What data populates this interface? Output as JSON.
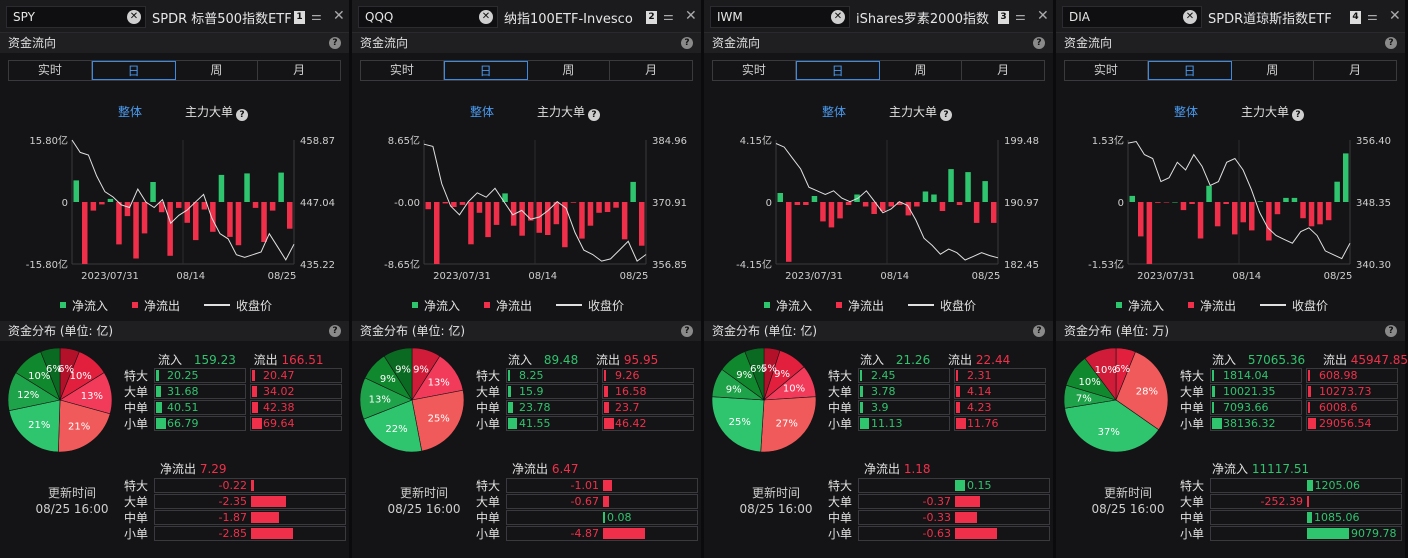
{
  "colors": {
    "inflow": "#2fc46e",
    "outflow": "#f0304a",
    "accent": "#4a9af0",
    "price_line": "#e0e0e0"
  },
  "labels": {
    "section1": "资金流向",
    "section2_prefix": "资金分布 (单位: ",
    "section2_suffix": ")",
    "tabs": [
      "实时",
      "日",
      "周",
      "月"
    ],
    "selected_tab": "日",
    "subtab_all": "整体",
    "subtab_major": "主力大单",
    "legend_in": "净流入",
    "legend_out": "净流出",
    "legend_price": "收盘价",
    "flow_in": "流入",
    "flow_out": "流出",
    "rows": [
      "特大",
      "大单",
      "中单",
      "小单"
    ],
    "update_label": "更新时间",
    "update_time": "08/25 16:00",
    "x_ticks": [
      "2023/07/31",
      "08/14",
      "08/25"
    ],
    "close_icon": "close-icon",
    "settings_icon": "sliders-icon",
    "help_icon": "question-icon"
  },
  "panels": [
    {
      "symbol": "SPY",
      "name": "SPDR 标普500指数ETF",
      "index": "1",
      "unit": "亿",
      "chart_data": {
        "type": "bar",
        "left_ticks": [
          "15.80亿",
          "0",
          "-15.80亿"
        ],
        "right_ticks": [
          "458.87",
          "447.04",
          "435.22"
        ],
        "ylim": [
          -15.8,
          15.8
        ],
        "price_ylim": [
          435.22,
          458.87
        ],
        "net_flow": [
          5.5,
          -15.8,
          -2.2,
          -0.6,
          0.8,
          -10.8,
          -3.6,
          -14.4,
          -8,
          5.1,
          -2.6,
          -13.7,
          -1.5,
          -5.3,
          -9.7,
          -1.9,
          -7.6,
          6.9,
          -8.9,
          -11,
          7.3,
          -1.5,
          -10.2,
          -2.2,
          7.5,
          -6.8
        ],
        "close": [
          458.87,
          456.5,
          456,
          452,
          449,
          448,
          446.5,
          446,
          449.5,
          447,
          446,
          447.5,
          443,
          444.5,
          445.5,
          447,
          448.5,
          444,
          441,
          440,
          437,
          436.5,
          437,
          437.5,
          441,
          438.5,
          436,
          439
        ]
      },
      "pie": [
        {
          "label": "6%",
          "value": 6,
          "color": "#b3102a"
        },
        {
          "label": "10%",
          "value": 10,
          "color": "#e2203e"
        },
        {
          "label": "13%",
          "value": 13,
          "color": "#f23b5a"
        },
        {
          "label": "21%",
          "value": 21,
          "color": "#f05a5a"
        },
        {
          "label": "21%",
          "value": 21,
          "color": "#2fc46e"
        },
        {
          "label": "12%",
          "value": 12,
          "color": "#1fa34a"
        },
        {
          "label": "10%",
          "value": 10,
          "color": "#10882e"
        },
        {
          "label": "6%",
          "value": 6,
          "color": "#0a6a22"
        }
      ],
      "flow_in": "159.23",
      "flow_out": "166.51",
      "in_vals": [
        "20.25",
        "31.68",
        "40.51",
        "66.79"
      ],
      "out_vals": [
        "20.47",
        "34.02",
        "42.38",
        "69.64"
      ],
      "net_label": "净流出",
      "net_value": "7.29",
      "net_sign": -1,
      "net_vals": [
        "-0.22",
        "-2.35",
        "-1.87",
        "-2.85"
      ],
      "net_nums": [
        -0.22,
        -2.35,
        -1.87,
        -2.85
      ]
    },
    {
      "symbol": "QQQ",
      "name": "纳指100ETF-Invesco",
      "index": "2",
      "unit": "亿",
      "chart_data": {
        "type": "bar",
        "left_ticks": [
          "8.65亿",
          "-0.00",
          "-8.65亿"
        ],
        "right_ticks": [
          "384.96",
          "370.91",
          "356.85"
        ],
        "ylim": [
          -8.65,
          8.65
        ],
        "price_ylim": [
          356.85,
          384.96
        ],
        "net_flow": [
          -1,
          -8.65,
          -0.2,
          -0.7,
          -0.4,
          -5.9,
          -1.5,
          -4.9,
          -3.2,
          1.2,
          -3.3,
          -4.7,
          -2.6,
          -4.3,
          -4.6,
          -3.1,
          -6.3,
          -0.1,
          -5.1,
          -3.3,
          -1.5,
          -1.4,
          -0.8,
          -5.2,
          2.8,
          -6.1
        ],
        "close": [
          384,
          383.5,
          375,
          370,
          368,
          371,
          373,
          372,
          374,
          371,
          368,
          369,
          367,
          367.5,
          369,
          371,
          369.5,
          364,
          360,
          359,
          357.5,
          358,
          360,
          362,
          357.5,
          359
        ]
      },
      "pie": [
        {
          "label": "9%",
          "value": 9,
          "color": "#d01c38"
        },
        {
          "label": "13%",
          "value": 13,
          "color": "#f23b5a"
        },
        {
          "label": "25%",
          "value": 25,
          "color": "#f05a5a"
        },
        {
          "label": "22%",
          "value": 22,
          "color": "#2fc46e"
        },
        {
          "label": "13%",
          "value": 13,
          "color": "#1fa34a"
        },
        {
          "label": "9%",
          "value": 9,
          "color": "#10882e"
        },
        {
          "label": "9%",
          "value": 9,
          "color": "#0a6a22"
        }
      ],
      "flow_in": "89.48",
      "flow_out": "95.95",
      "in_vals": [
        "8.25",
        "15.9",
        "23.78",
        "41.55"
      ],
      "out_vals": [
        "9.26",
        "16.58",
        "23.7",
        "46.42"
      ],
      "net_label": "净流出",
      "net_value": "6.47",
      "net_sign": -1,
      "net_vals": [
        "-1.01",
        "-0.67",
        "0.08",
        "-4.87"
      ],
      "net_nums": [
        -1.01,
        -0.67,
        0.08,
        -4.87
      ]
    },
    {
      "symbol": "IWM",
      "name": "iShares罗素2000指数",
      "index": "3",
      "unit": "亿",
      "chart_data": {
        "type": "bar",
        "left_ticks": [
          "4.15亿",
          "0",
          "-4.15亿"
        ],
        "right_ticks": [
          "199.48",
          "190.97",
          "182.45"
        ],
        "ylim": [
          -4.15,
          4.15
        ],
        "price_ylim": [
          182.45,
          199.48
        ],
        "net_flow": [
          0.6,
          -4,
          -0.2,
          -0.2,
          0.4,
          -1.3,
          -1.7,
          -1.1,
          -0.2,
          0.5,
          -0.3,
          -0.8,
          -0.6,
          -0.3,
          -0.2,
          -0.9,
          -0.3,
          0.7,
          0.5,
          -0.6,
          2.2,
          -0.2,
          2,
          -1.4,
          1.4,
          -1.4
        ],
        "close": [
          199,
          198.5,
          197,
          195.5,
          193,
          192.5,
          192,
          192.5,
          191.5,
          191,
          191.5,
          192.5,
          191,
          189.5,
          190,
          191,
          190.5,
          188.5,
          186,
          185,
          183.8,
          184.5,
          184,
          183,
          183.5,
          184,
          183.6,
          183.3
        ]
      },
      "pie": [
        {
          "label": "5%",
          "value": 5,
          "color": "#b3102a"
        },
        {
          "label": "9%",
          "value": 9,
          "color": "#e2203e"
        },
        {
          "label": "10%",
          "value": 10,
          "color": "#f23b5a"
        },
        {
          "label": "27%",
          "value": 27,
          "color": "#f05a5a"
        },
        {
          "label": "25%",
          "value": 25,
          "color": "#2fc46e"
        },
        {
          "label": "9%",
          "value": 9,
          "color": "#1fa34a"
        },
        {
          "label": "9%",
          "value": 9,
          "color": "#10882e"
        },
        {
          "label": "6%",
          "value": 6,
          "color": "#0a6a22"
        }
      ],
      "flow_in": "21.26",
      "flow_out": "22.44",
      "in_vals": [
        "2.45",
        "3.78",
        "3.9",
        "11.13"
      ],
      "out_vals": [
        "2.31",
        "4.14",
        "4.23",
        "11.76"
      ],
      "net_label": "净流出",
      "net_value": "1.18",
      "net_sign": -1,
      "net_vals": [
        "0.15",
        "-0.37",
        "-0.33",
        "-0.63"
      ],
      "net_nums": [
        0.15,
        -0.37,
        -0.33,
        -0.63
      ]
    },
    {
      "symbol": "DIA",
      "name": "SPDR道琼斯指数ETF",
      "index": "4",
      "unit": "万",
      "chart_data": {
        "type": "bar",
        "left_ticks": [
          "1.53亿",
          "0",
          "-1.53亿"
        ],
        "right_ticks": [
          "356.40",
          "348.35",
          "340.30"
        ],
        "ylim": [
          -1.53,
          1.53
        ],
        "price_ylim": [
          340.3,
          356.4
        ],
        "net_flow": [
          0.15,
          -0.85,
          -1.53,
          -0.02,
          -0.01,
          0,
          -0.2,
          -0.05,
          -0.9,
          0.4,
          -0.6,
          -0.05,
          -0.8,
          -0.5,
          -0.7,
          0.02,
          -0.95,
          -0.3,
          0.1,
          0.1,
          -0.4,
          -0.6,
          -0.55,
          -0.45,
          0.5,
          1.2
        ],
        "close": [
          356,
          356.2,
          354.5,
          354,
          351,
          351.5,
          353.5,
          352.5,
          354.5,
          353,
          350.5,
          351,
          353.5,
          354,
          352.5,
          350,
          347,
          345,
          344,
          343.5,
          343,
          344.5,
          345,
          344,
          342,
          341.5,
          341,
          343
        ]
      },
      "pie": [
        {
          "label": "6%",
          "value": 6,
          "color": "#e2203e"
        },
        {
          "label": "28%",
          "value": 28,
          "color": "#f05a5a"
        },
        {
          "label": "37%",
          "value": 37,
          "color": "#2fc46e"
        },
        {
          "label": "7%",
          "value": 7,
          "color": "#1fa34a"
        },
        {
          "label": "10%",
          "value": 10,
          "color": "#10882e"
        },
        {
          "label": "10%",
          "value": 10,
          "color": "#d01c38"
        }
      ],
      "flow_in": "57065.36",
      "flow_out": "45947.85",
      "in_vals": [
        "1814.04",
        "10021.35",
        "7093.66",
        "38136.32"
      ],
      "out_vals": [
        "608.98",
        "10273.73",
        "6008.6",
        "29056.54"
      ],
      "net_label": "净流入",
      "net_value": "11117.51",
      "net_sign": 1,
      "net_vals": [
        "1205.06",
        "-252.39",
        "1085.06",
        "9079.78"
      ],
      "net_nums": [
        1205.06,
        -252.39,
        1085.06,
        9079.78
      ]
    }
  ]
}
